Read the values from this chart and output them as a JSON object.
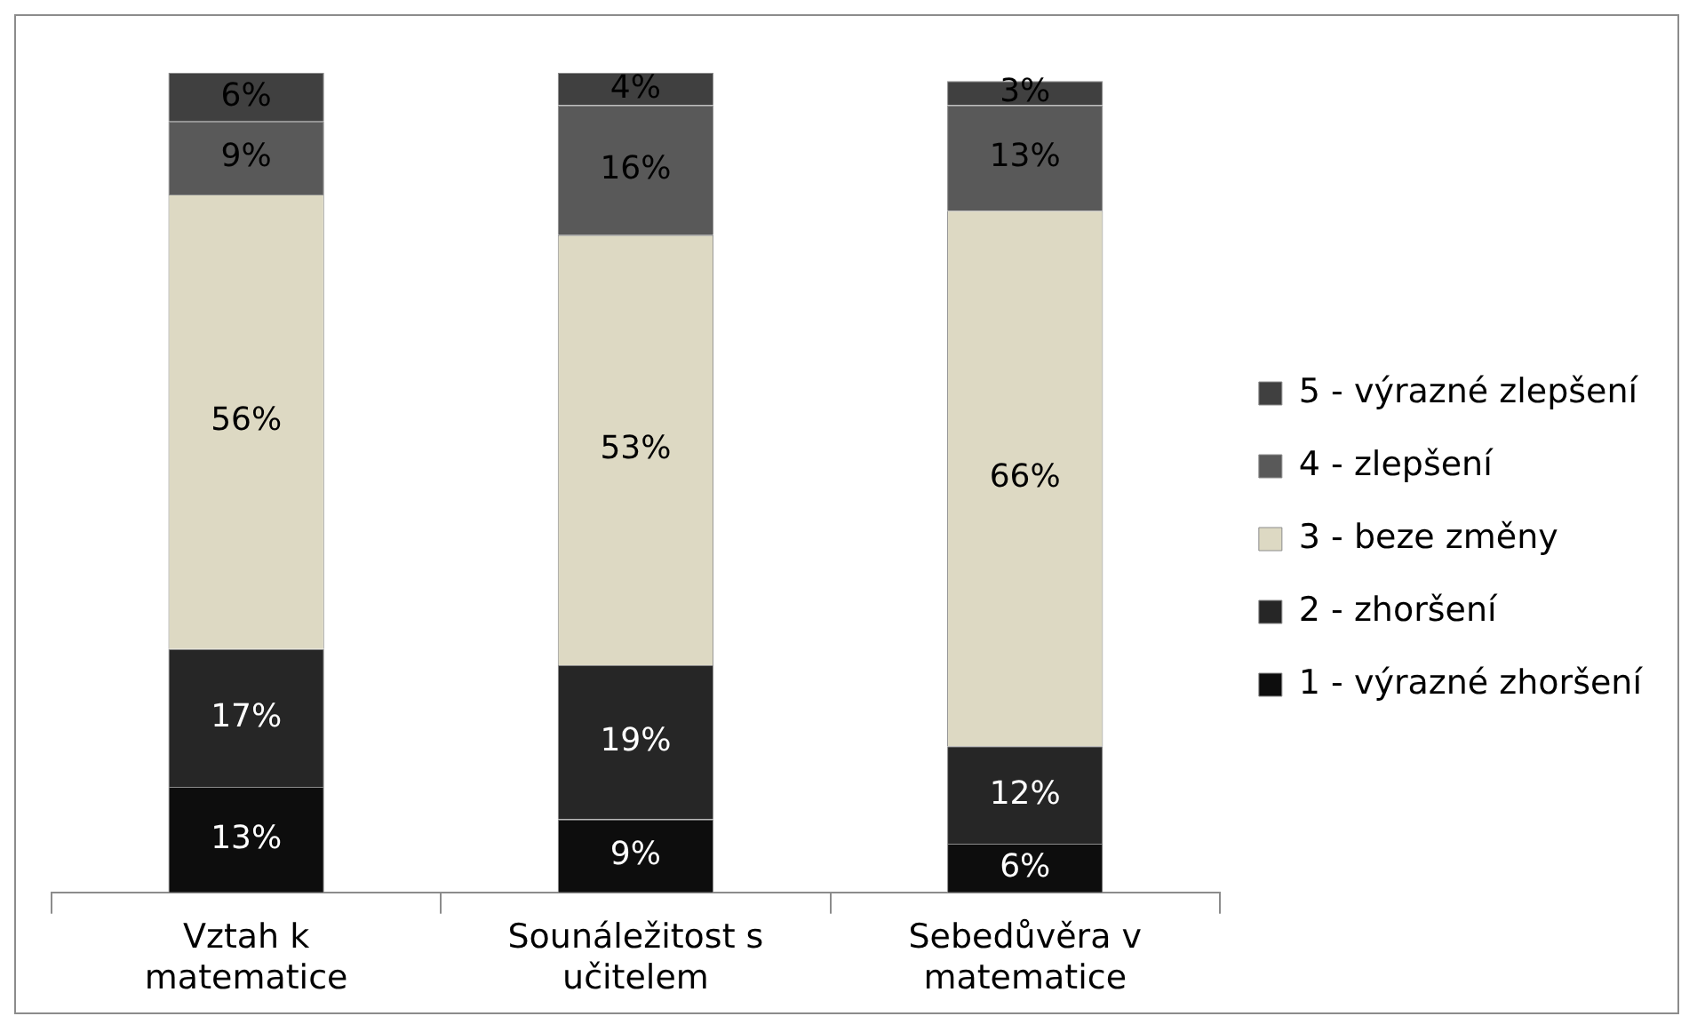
{
  "chart_data": {
    "type": "bar",
    "stacked": true,
    "legend": "right",
    "grid": false,
    "categories": [
      "Vztah k matematice",
      "Sounáležitost s učitelem",
      "Sebedůvěra v matematice"
    ],
    "series": [
      {
        "name": "1 - výrazné zhoršení",
        "color": "#0d0d0d",
        "values": [
          13,
          9,
          6
        ],
        "value_labels": [
          "13%",
          "9%",
          "6%"
        ]
      },
      {
        "name": "2 - zhoršení",
        "color": "#262626",
        "values": [
          17,
          19,
          12
        ],
        "value_labels": [
          "17%",
          "19%",
          "12%"
        ]
      },
      {
        "name": "3 - beze změny",
        "color": "#ddd9c3",
        "values": [
          56,
          53,
          66
        ],
        "value_labels": [
          "56%",
          "53%",
          "66%"
        ]
      },
      {
        "name": "4 - zlepšení",
        "color": "#595959",
        "values": [
          9,
          16,
          13
        ],
        "value_labels": [
          "9%",
          "16%",
          "13%"
        ]
      },
      {
        "name": "5 - výrazné zlepšení",
        "color": "#404040",
        "values": [
          6,
          4,
          3
        ],
        "value_labels": [
          "6%",
          "4%",
          "3%"
        ]
      }
    ]
  }
}
